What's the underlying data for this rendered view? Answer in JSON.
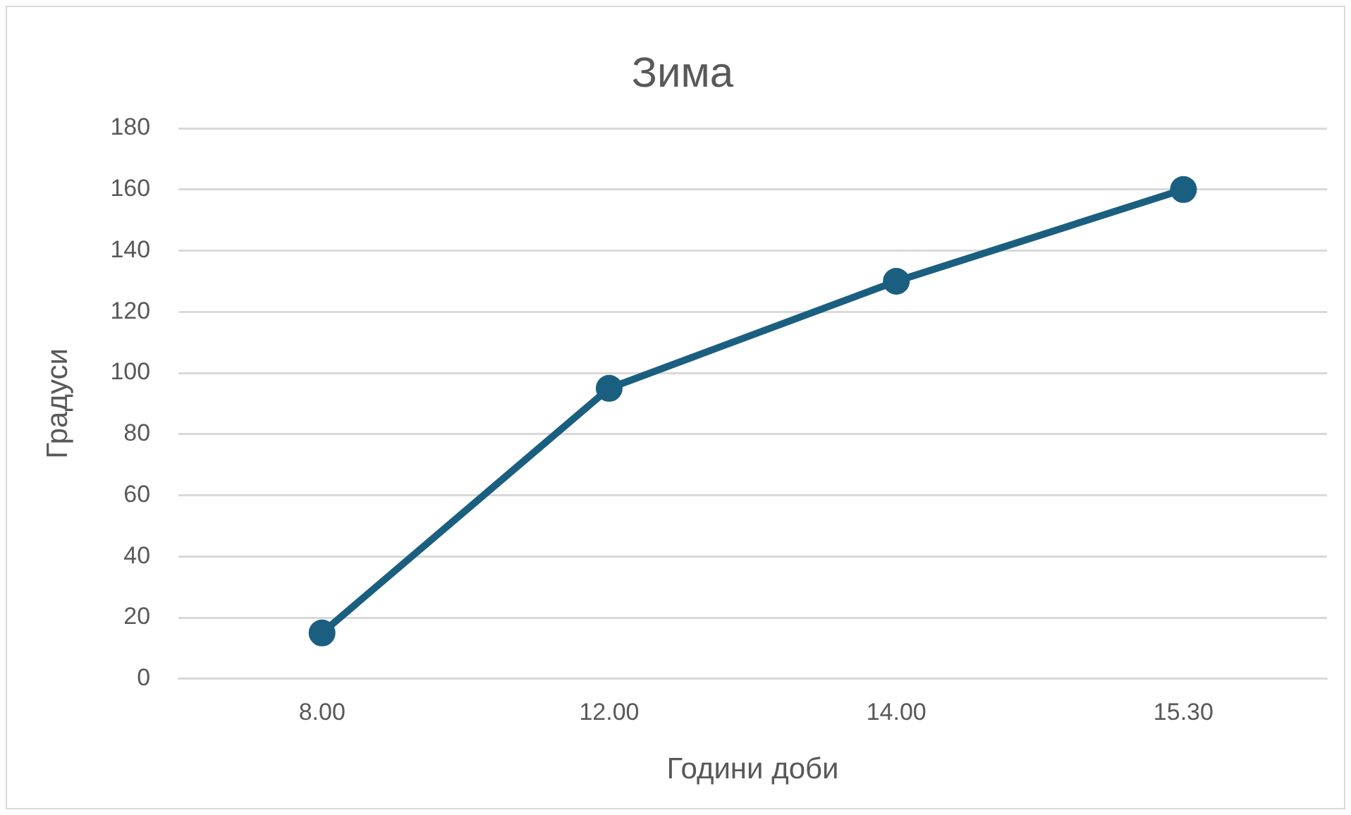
{
  "chart_data": {
    "type": "line",
    "title": "Зима",
    "xlabel": "Години доби",
    "ylabel": "Градуси",
    "categories": [
      "8.00",
      "12.00",
      "14.00",
      "15.30"
    ],
    "series": [
      {
        "color": "#1b5f80",
        "values": [
          15,
          95,
          130,
          160
        ]
      }
    ],
    "ylim": [
      0,
      180
    ],
    "yticks": [
      0,
      20,
      40,
      60,
      80,
      100,
      120,
      140,
      160,
      180
    ],
    "grid": "y",
    "legend": false,
    "marker": "circle",
    "line_style": "solid"
  }
}
